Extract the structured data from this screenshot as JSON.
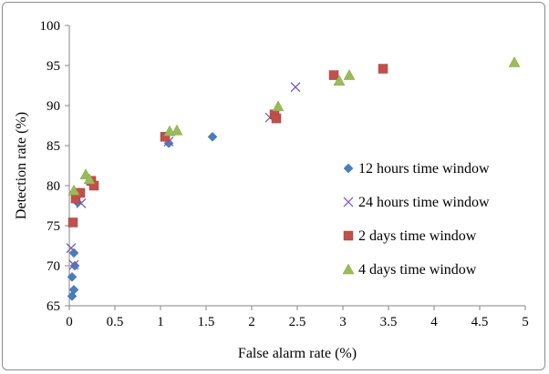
{
  "chart_data": {
    "type": "scatter",
    "title": "",
    "xlabel": "False alarm rate (%)",
    "ylabel": "Detection rate (%)",
    "xlim": [
      0,
      5
    ],
    "ylim": [
      65,
      100
    ],
    "xticks": [
      0,
      0.5,
      1,
      1.5,
      2,
      2.5,
      3,
      3.5,
      4,
      4.5,
      5
    ],
    "xtick_labels": [
      "0",
      "0.5",
      "1",
      "1.5",
      "2",
      "2.5",
      "3",
      "3.5",
      "4",
      "4.5",
      "5"
    ],
    "yticks": [
      65,
      70,
      75,
      80,
      85,
      90,
      95,
      100
    ],
    "ytick_labels": [
      "65",
      "70",
      "75",
      "80",
      "85",
      "90",
      "95",
      "100"
    ],
    "grid": false,
    "legend_position": "right",
    "series": [
      {
        "name": "12 hours time window",
        "marker": "diamond",
        "color": "#4a7ebb",
        "points": [
          [
            0.03,
            66.2
          ],
          [
            0.03,
            68.6
          ],
          [
            0.05,
            67.0
          ],
          [
            0.05,
            71.6
          ],
          [
            0.06,
            70.0
          ],
          [
            0.09,
            77.9
          ],
          [
            1.09,
            85.3
          ],
          [
            1.57,
            86.1
          ]
        ]
      },
      {
        "name": "24 hours time window",
        "marker": "x",
        "color": "#7b5fb0",
        "points": [
          [
            0.02,
            72.2
          ],
          [
            0.05,
            70.1
          ],
          [
            0.13,
            77.8
          ],
          [
            1.09,
            85.5
          ],
          [
            2.2,
            88.5
          ],
          [
            2.48,
            92.3
          ]
        ]
      },
      {
        "name": "2 days time window",
        "marker": "square",
        "color": "#c0504d",
        "points": [
          [
            0.04,
            75.4
          ],
          [
            0.07,
            78.4
          ],
          [
            0.12,
            79.1
          ],
          [
            0.24,
            80.6
          ],
          [
            0.27,
            80.0
          ],
          [
            1.05,
            86.1
          ],
          [
            2.25,
            88.9
          ],
          [
            2.27,
            88.4
          ],
          [
            2.9,
            93.8
          ],
          [
            3.44,
            94.6
          ]
        ]
      },
      {
        "name": "4 days time window",
        "marker": "triangle",
        "color": "#9bbb59",
        "points": [
          [
            0.05,
            79.4
          ],
          [
            0.18,
            81.4
          ],
          [
            0.22,
            80.8
          ],
          [
            1.1,
            86.8
          ],
          [
            1.18,
            86.9
          ],
          [
            2.29,
            89.9
          ],
          [
            2.96,
            93.1
          ],
          [
            3.07,
            93.8
          ],
          [
            4.88,
            95.4
          ]
        ]
      }
    ]
  }
}
